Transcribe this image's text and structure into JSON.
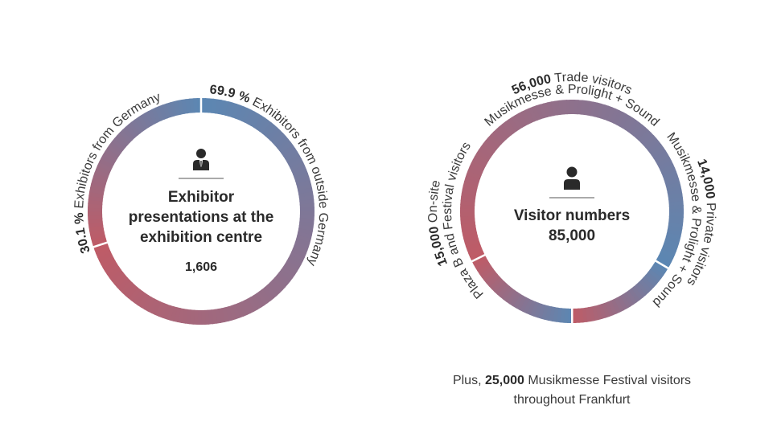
{
  "chart_data": [
    {
      "type": "pie",
      "title_lines": [
        "Exhibitor",
        "presentations at the",
        "exhibition centre"
      ],
      "total": "1,606",
      "slices": [
        {
          "value_label": "69.9 %",
          "label": "Exhibitors from outside Germany",
          "value": 69.9
        },
        {
          "value_label": "30.1 %",
          "label": "Exhibitors from Germany",
          "value": 30.1
        }
      ]
    },
    {
      "type": "pie",
      "title_lines": [
        "Visitor numbers",
        "85,000"
      ],
      "total": "85,000",
      "slices": [
        {
          "value_label": "56,000",
          "label_line1": "Trade visitors",
          "label_line2": "Musikmesse & Prolight + Sound",
          "value": 56000
        },
        {
          "value_label": "14,000",
          "label_line1": "Private visitors",
          "label_line2": "Musikmesse & Prolight + Sound",
          "value": 14000
        },
        {
          "value_label": "15,000",
          "label_line1": "On-site",
          "label_line2": "Plaza B and Festival visitors",
          "value": 15000
        }
      ]
    }
  ],
  "footnote": {
    "prefix": "Plus, ",
    "value": "25,000",
    "suffix": " Musikmesse Festival visitors",
    "line2": "throughout Frankfurt"
  },
  "colors": {
    "blue": "#5b87b3",
    "red": "#bf5b66",
    "mid": "#8f7b96",
    "text": "#2a2a2a",
    "divider": "#555555"
  },
  "icons": [
    "exhibitor-person-icon",
    "visitor-person-icon"
  ]
}
